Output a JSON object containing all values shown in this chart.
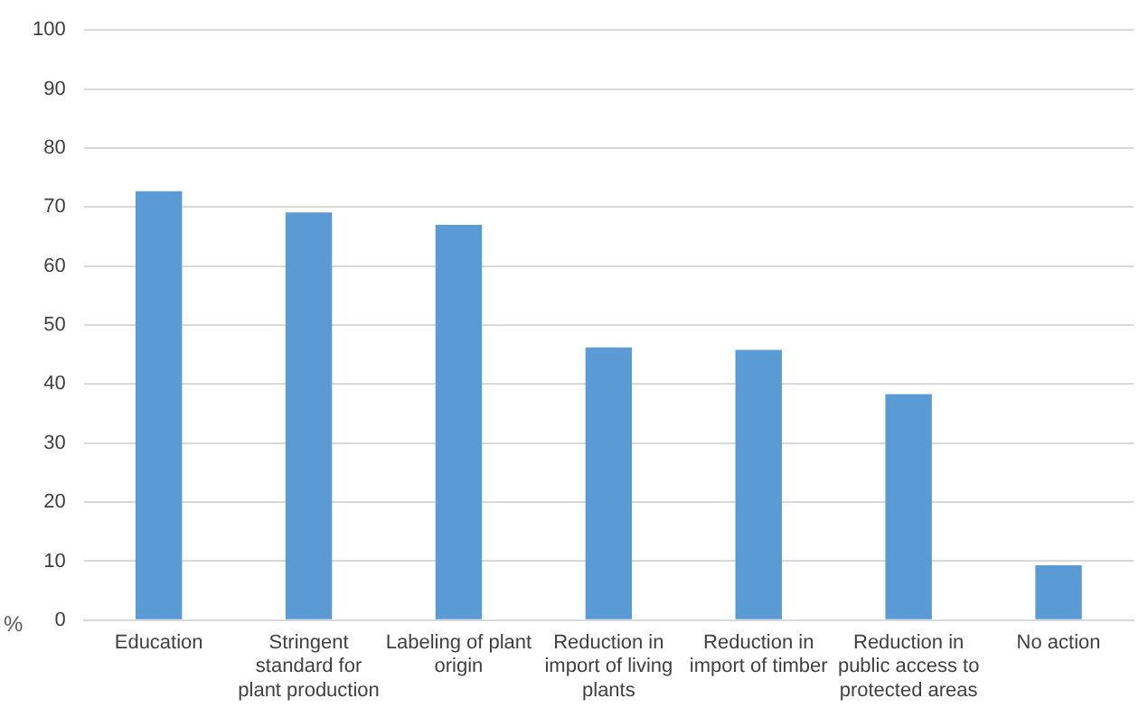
{
  "chart_data": {
    "type": "bar",
    "ylabel": "%",
    "categories": [
      "Education",
      "Stringent standard for plant production",
      "Labeling of plant origin",
      "Reduction in import of living plants",
      "Reduction in import of timber",
      "Reduction in public access to protected areas",
      "No action"
    ],
    "values": [
      72.7,
      69.1,
      67,
      46.2,
      45.8,
      38.3,
      9.3
    ],
    "color": "#5b9bd5",
    "ylim": [
      0,
      100
    ],
    "yticks": [
      0,
      10,
      20,
      30,
      40,
      50,
      60,
      70,
      80,
      90,
      100
    ],
    "grid": "y"
  }
}
